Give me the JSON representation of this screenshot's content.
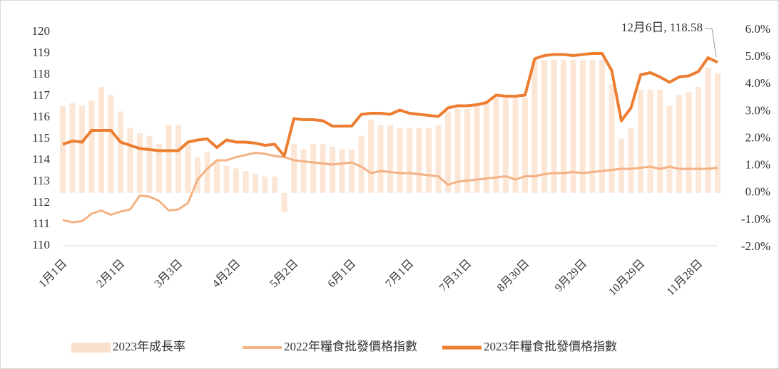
{
  "chart_data": {
    "type": "combo",
    "annotation": "12月6日, 118.58",
    "categories": [
      "1月1日",
      null,
      null,
      null,
      null,
      null,
      "2月1日",
      null,
      null,
      null,
      null,
      null,
      "3月3日",
      null,
      null,
      null,
      null,
      null,
      "4月2日",
      null,
      null,
      null,
      null,
      null,
      "5月2日",
      null,
      null,
      null,
      null,
      null,
      "6月1日",
      null,
      null,
      null,
      null,
      null,
      "7月1日",
      null,
      null,
      null,
      null,
      null,
      "7月31日",
      null,
      null,
      null,
      null,
      null,
      "8月30日",
      null,
      null,
      null,
      null,
      null,
      "9月29日",
      null,
      null,
      null,
      null,
      null,
      "10月29日",
      null,
      null,
      null,
      null,
      null,
      "11月28日",
      null,
      null
    ],
    "ylim": [
      110,
      120
    ],
    "yticks": [
      110,
      111,
      112,
      113,
      114,
      115,
      116,
      117,
      118,
      119,
      120
    ],
    "y2lim": [
      -2,
      6
    ],
    "y2ticks": [
      {
        "value": -2,
        "label": "-2.0%"
      },
      {
        "value": -1,
        "label": "-1.0%"
      },
      {
        "value": 0,
        "label": "0.0%"
      },
      {
        "value": 1,
        "label": "1.0%"
      },
      {
        "value": 2,
        "label": "2.0%"
      },
      {
        "value": 3,
        "label": "3.0%"
      },
      {
        "value": 4,
        "label": "4.0%"
      },
      {
        "value": 5,
        "label": "5.0%"
      },
      {
        "value": 6,
        "label": "6.0%"
      }
    ],
    "legend": "bottom",
    "series": [
      {
        "name": "2023年成長率",
        "type": "bar",
        "axis": "y2",
        "color": "#fbe0cc",
        "values": [
          3.2,
          3.3,
          3.2,
          3.4,
          3.9,
          3.6,
          3.0,
          2.4,
          2.2,
          2.1,
          1.8,
          2.5,
          2.5,
          1.8,
          1.3,
          1.5,
          1.2,
          1.0,
          0.9,
          0.8,
          0.7,
          0.6,
          0.6,
          -0.7,
          1.8,
          1.6,
          1.8,
          1.8,
          1.7,
          1.6,
          1.6,
          2.1,
          2.7,
          2.5,
          2.5,
          2.4,
          2.4,
          2.4,
          2.4,
          2.5,
          3.0,
          3.1,
          3.1,
          3.2,
          3.3,
          3.5,
          3.5,
          3.5,
          3.5,
          4.9,
          4.9,
          4.9,
          4.9,
          4.9,
          4.9,
          4.9,
          4.9,
          4.0,
          2.0,
          2.4,
          3.8,
          3.8,
          3.8,
          3.2,
          3.6,
          3.7,
          3.9,
          4.6,
          4.4
        ]
      },
      {
        "name": "2022年糧食批發價格指數",
        "type": "line",
        "color": "#f4b183",
        "values": [
          111.2,
          111.1,
          111.15,
          111.5,
          111.65,
          111.45,
          111.6,
          111.7,
          112.35,
          112.3,
          112.1,
          111.65,
          111.7,
          112.0,
          113.1,
          113.6,
          114.0,
          114.0,
          114.15,
          114.25,
          114.35,
          114.3,
          114.2,
          114.15,
          114.0,
          113.95,
          113.9,
          113.85,
          113.8,
          113.85,
          113.9,
          113.7,
          113.4,
          113.5,
          113.45,
          113.4,
          113.4,
          113.35,
          113.3,
          113.25,
          112.85,
          113.0,
          113.05,
          113.1,
          113.15,
          113.2,
          113.25,
          113.1,
          113.25,
          113.25,
          113.35,
          113.4,
          113.4,
          113.45,
          113.4,
          113.45,
          113.5,
          113.55,
          113.6,
          113.6,
          113.65,
          113.7,
          113.6,
          113.7,
          113.6,
          113.6,
          113.6,
          113.6,
          113.65
        ]
      },
      {
        "name": "2023年糧食批發價格指數",
        "type": "line",
        "color": "#ed7d31",
        "values": [
          114.75,
          114.9,
          114.85,
          115.4,
          115.4,
          115.4,
          114.85,
          114.7,
          114.55,
          114.5,
          114.45,
          114.45,
          114.45,
          114.85,
          114.95,
          115.0,
          114.6,
          114.95,
          114.85,
          114.85,
          114.8,
          114.7,
          114.75,
          114.2,
          115.95,
          115.9,
          115.9,
          115.85,
          115.6,
          115.6,
          115.6,
          116.15,
          116.2,
          116.2,
          116.15,
          116.35,
          116.2,
          116.15,
          116.1,
          116.05,
          116.45,
          116.55,
          116.55,
          116.6,
          116.7,
          117.05,
          117.0,
          117.0,
          117.05,
          118.75,
          118.9,
          118.95,
          118.95,
          118.9,
          118.95,
          119.0,
          119.0,
          118.2,
          115.85,
          116.45,
          118.0,
          118.1,
          117.9,
          117.65,
          117.9,
          117.95,
          118.15,
          118.8,
          118.58
        ]
      }
    ]
  }
}
